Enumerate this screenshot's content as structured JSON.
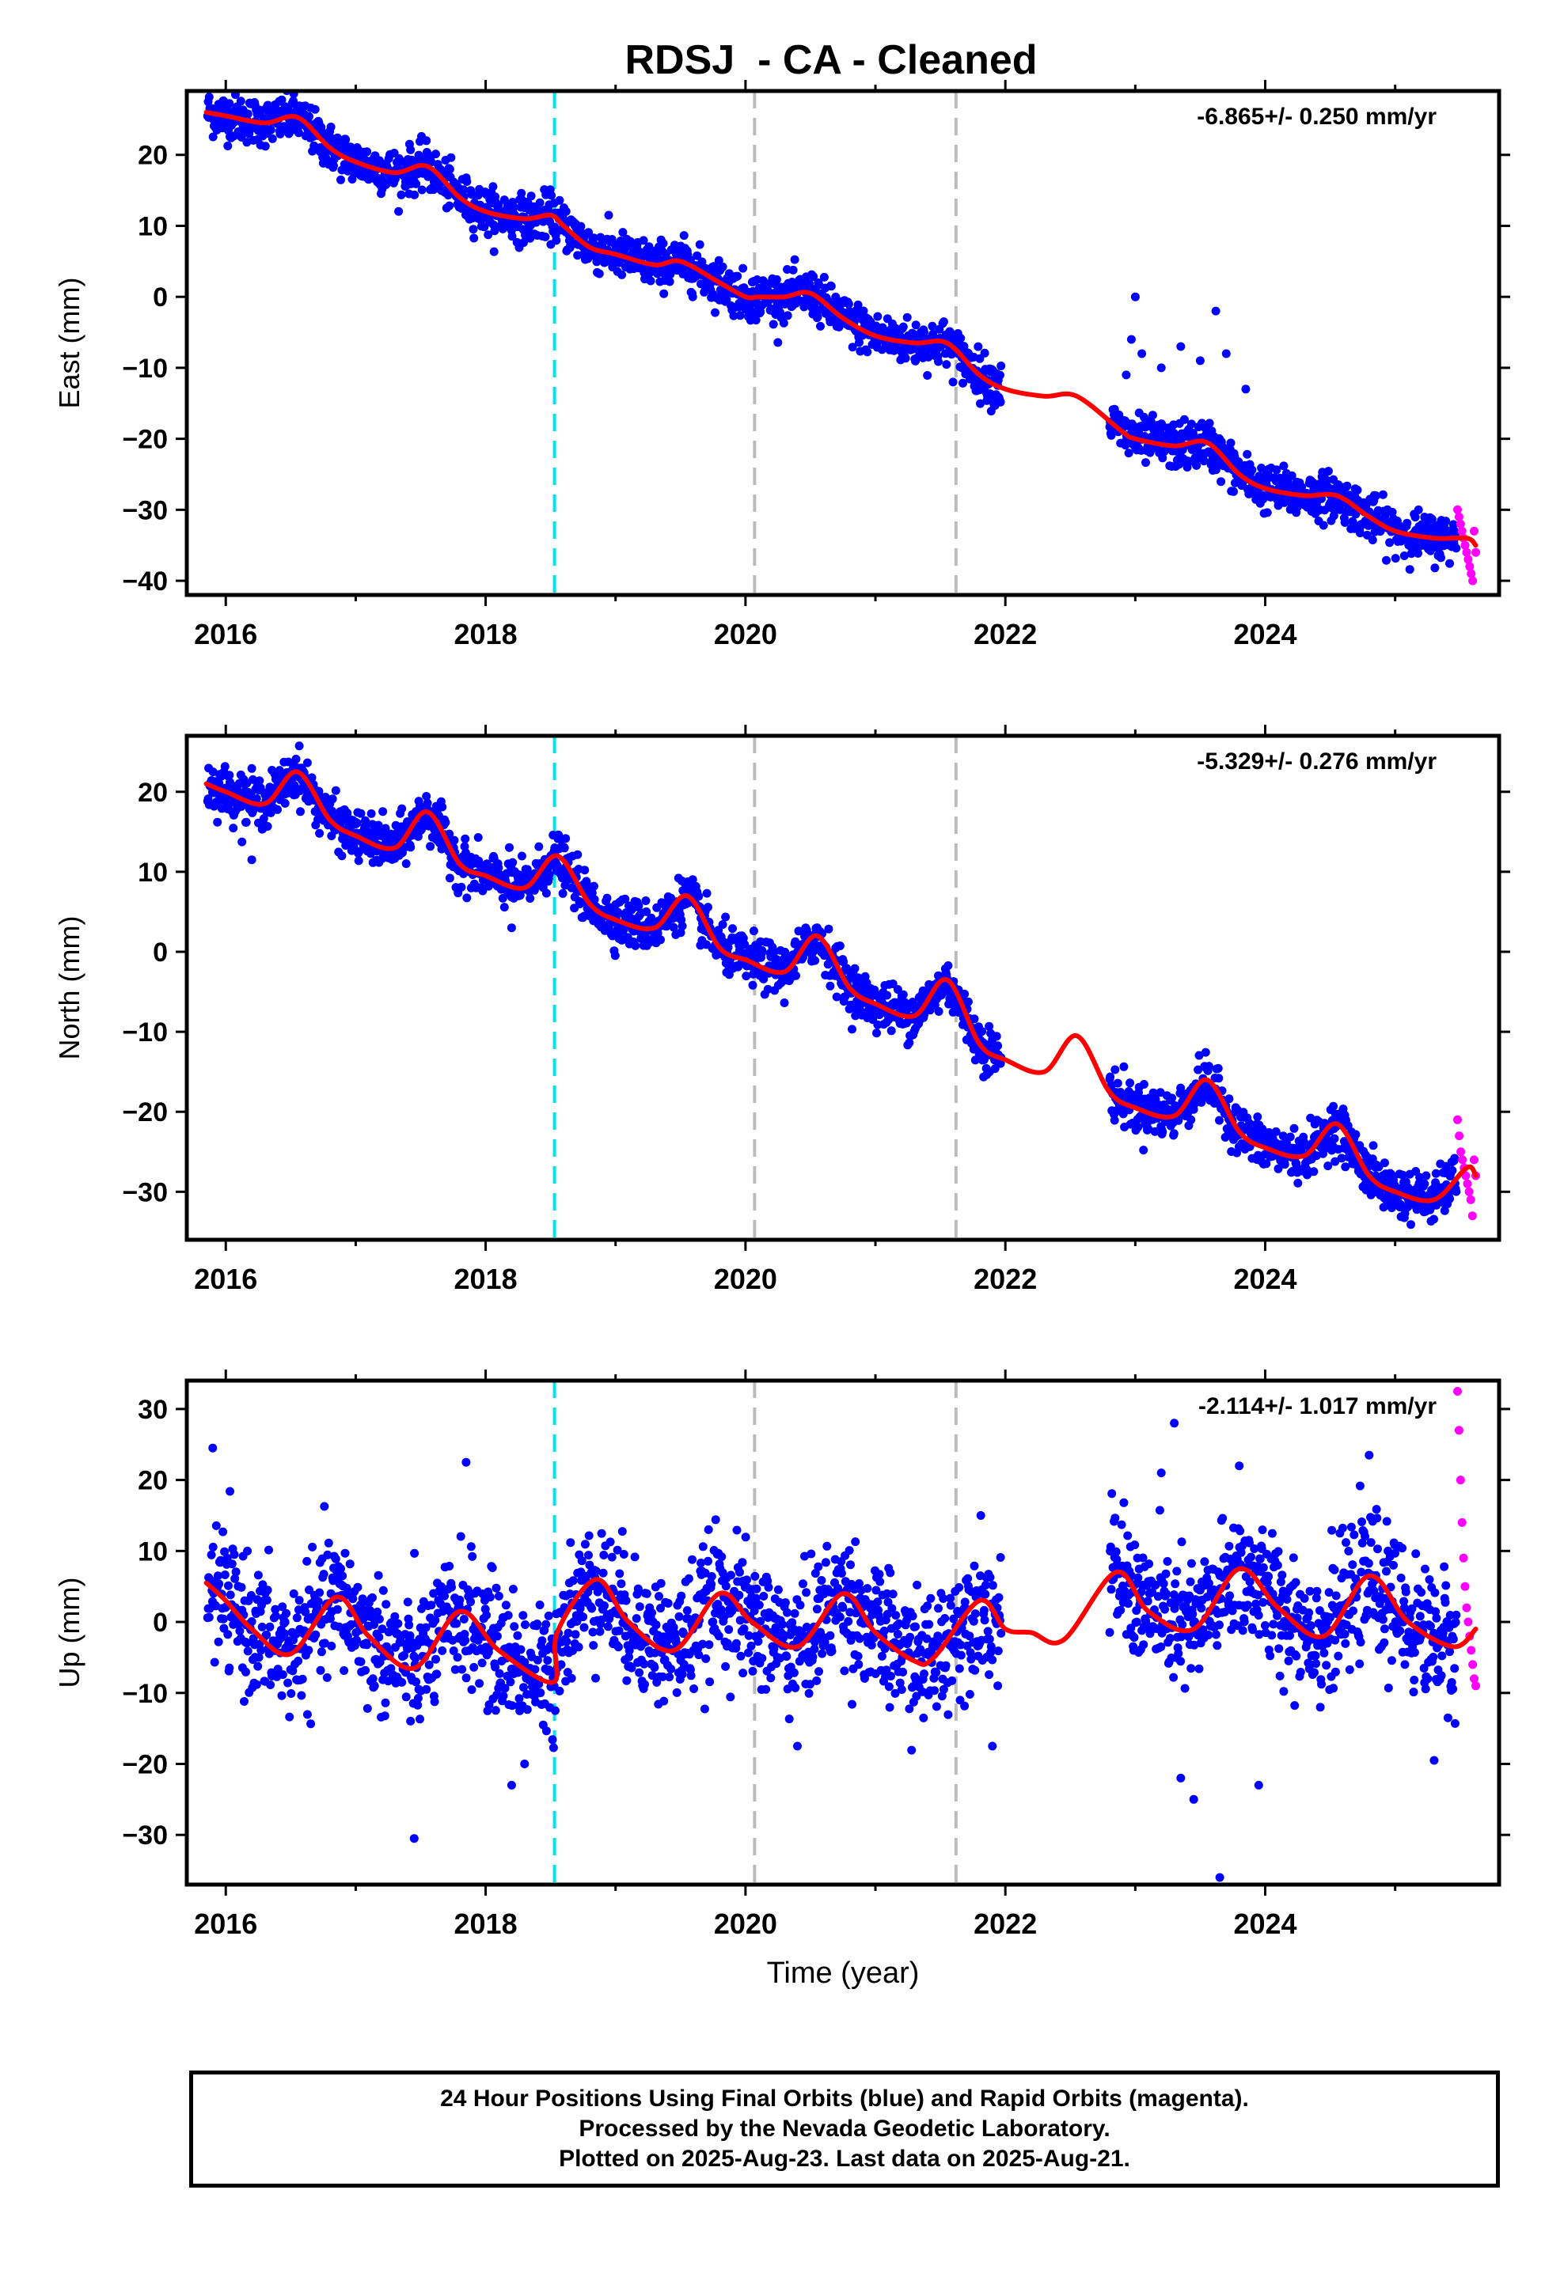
{
  "title": "RDSJ  - CA - Cleaned",
  "colors": {
    "final_points": "#0000ff",
    "rapid_points": "#ff00ff",
    "model": "#ff0000",
    "equipment_change": "#00e5ee",
    "other_event": "#bbbbbb"
  },
  "chart_data": [
    {
      "type": "scatter",
      "name": "East",
      "ylabel": "East (mm)",
      "xlabel": "",
      "xlim": [
        2015.7,
        2025.8
      ],
      "ylim": [
        -42,
        29
      ],
      "yticks": [
        -40,
        -30,
        -20,
        -10,
        0,
        10,
        20
      ],
      "ytick_labels": [
        "−40",
        "−30",
        "−20",
        "−10",
        "0",
        "10",
        "20"
      ],
      "xticks": [
        2016,
        2018,
        2020,
        2022,
        2024
      ],
      "xtick_labels": [
        "2016",
        "2018",
        "2020",
        "2022",
        "2024"
      ],
      "rate_label": "-6.865+/- 0.250 mm/yr",
      "rate": -6.865,
      "noise": 1.6,
      "model": {
        "x": [
          2015.85,
          2016.0,
          2016.3,
          2016.55,
          2016.8,
          2017.0,
          2017.3,
          2017.55,
          2017.8,
          2018.0,
          2018.3,
          2018.5,
          2018.6,
          2018.8,
          2019.0,
          2019.3,
          2019.5,
          2019.8,
          2020.0,
          2020.1,
          2020.3,
          2020.5,
          2020.75,
          2021.0,
          2021.3,
          2021.55,
          2021.8,
          2022.0,
          2022.3,
          2022.55,
          2022.9,
          2023.0,
          2023.3,
          2023.55,
          2023.8,
          2024.0,
          2024.3,
          2024.55,
          2024.8,
          2025.0,
          2025.3,
          2025.55,
          2025.62
        ],
        "y": [
          26,
          25.5,
          24.5,
          25.3,
          21,
          19,
          17.5,
          18.4,
          14,
          12,
          11,
          11.5,
          10,
          7,
          6,
          4.5,
          5,
          2,
          0,
          0,
          0,
          0.5,
          -3,
          -5.5,
          -6.5,
          -6.5,
          -11,
          -13,
          -14,
          -14,
          -19,
          -20,
          -21,
          -20.5,
          -25,
          -27,
          -28,
          -28,
          -31,
          -33,
          -34,
          -34,
          -35
        ]
      },
      "gaps": [
        [
          2021.97,
          2022.8
        ]
      ],
      "outliers": [
        [
          2022.93,
          -11
        ],
        [
          2022.97,
          -6
        ],
        [
          2023.0,
          0
        ],
        [
          2023.05,
          -8
        ],
        [
          2023.2,
          -10
        ],
        [
          2023.35,
          -7
        ],
        [
          2023.5,
          -9
        ],
        [
          2023.62,
          -2
        ],
        [
          2023.7,
          -8
        ],
        [
          2023.85,
          -13
        ],
        [
          2022.95,
          -22
        ],
        [
          2023.4,
          -24
        ]
      ],
      "rapid": {
        "x_start": 2025.48,
        "x_end": 2025.62,
        "y": [
          -30,
          -31,
          -32,
          -33,
          -34,
          -35,
          -36,
          -37,
          -38,
          -39,
          -40,
          -33,
          -36
        ]
      },
      "event_lines": [
        {
          "x": 2018.53,
          "kind": "equipment_change"
        },
        {
          "x": 2020.07,
          "kind": "other_event"
        },
        {
          "x": 2021.62,
          "kind": "other_event"
        }
      ]
    },
    {
      "type": "scatter",
      "name": "North",
      "ylabel": "North (mm)",
      "xlabel": "",
      "xlim": [
        2015.7,
        2025.8
      ],
      "ylim": [
        -36,
        27
      ],
      "yticks": [
        -30,
        -20,
        -10,
        0,
        10,
        20
      ],
      "ytick_labels": [
        "−30",
        "−20",
        "−10",
        "0",
        "10",
        "20"
      ],
      "xticks": [
        2016,
        2018,
        2020,
        2022,
        2024
      ],
      "xtick_labels": [
        "2016",
        "2018",
        "2020",
        "2022",
        "2024"
      ],
      "rate_label": "-5.329+/- 0.276 mm/yr",
      "rate": -5.329,
      "noise": 1.5,
      "model": {
        "x": [
          2015.85,
          2016.0,
          2016.3,
          2016.55,
          2016.8,
          2017.0,
          2017.3,
          2017.55,
          2017.8,
          2018.0,
          2018.3,
          2018.55,
          2018.8,
          2019.0,
          2019.3,
          2019.55,
          2019.8,
          2020.0,
          2020.3,
          2020.55,
          2020.8,
          2021.0,
          2021.3,
          2021.55,
          2021.8,
          2022.0,
          2022.3,
          2022.55,
          2022.8,
          2023.0,
          2023.3,
          2023.55,
          2023.8,
          2024.0,
          2024.3,
          2024.55,
          2024.8,
          2025.0,
          2025.3,
          2025.55,
          2025.62
        ],
        "y": [
          21,
          20,
          18.5,
          22.5,
          16.5,
          14.5,
          13,
          17.5,
          11,
          9.5,
          8,
          12,
          6,
          4,
          3,
          7,
          0.5,
          -1,
          -2.5,
          2,
          -4.5,
          -6.5,
          -8,
          -3.5,
          -11.5,
          -13.5,
          -15,
          -10.5,
          -17.5,
          -19.5,
          -20.5,
          -16,
          -22.5,
          -24.5,
          -25.5,
          -21.5,
          -28,
          -30,
          -31,
          -27,
          -28
        ]
      },
      "gaps": [
        [
          2021.97,
          2022.8
        ]
      ],
      "outliers": [
        [
          2016.2,
          11.5
        ],
        [
          2018.2,
          3
        ]
      ],
      "rapid": {
        "x_start": 2025.48,
        "x_end": 2025.62,
        "y": [
          -21,
          -23,
          -25,
          -26,
          -27,
          -28,
          -29,
          -30,
          -31,
          -33,
          -26,
          -28
        ]
      },
      "event_lines": [
        {
          "x": 2018.53,
          "kind": "equipment_change"
        },
        {
          "x": 2020.07,
          "kind": "other_event"
        },
        {
          "x": 2021.62,
          "kind": "other_event"
        }
      ]
    },
    {
      "type": "scatter",
      "name": "Up",
      "ylabel": "Up (mm)",
      "xlabel": "Time (year)",
      "xlim": [
        2015.7,
        2025.8
      ],
      "ylim": [
        -37,
        34
      ],
      "yticks": [
        -30,
        -20,
        -10,
        0,
        10,
        20,
        30
      ],
      "ytick_labels": [
        "−30",
        "−20",
        "−10",
        "0",
        "10",
        "20",
        "30"
      ],
      "xticks": [
        2016,
        2018,
        2020,
        2022,
        2024
      ],
      "xtick_labels": [
        "2016",
        "2018",
        "2020",
        "2022",
        "2024"
      ],
      "rate_label": "-2.114+/- 1.017 mm/yr",
      "rate": -2.114,
      "noise": 4.5,
      "model": {
        "x": [
          2015.85,
          2016.0,
          2016.2,
          2016.5,
          2016.85,
          2017.1,
          2017.45,
          2017.8,
          2018.1,
          2018.52,
          2018.55,
          2018.85,
          2019.1,
          2019.45,
          2019.8,
          2020.05,
          2020.4,
          2020.75,
          2021.0,
          2021.3,
          2021.45,
          2021.8,
          2022.0,
          2022.2,
          2022.45,
          2022.85,
          2023.1,
          2023.45,
          2023.8,
          2024.1,
          2024.45,
          2024.8,
          2025.1,
          2025.45,
          2025.62
        ],
        "y": [
          5.5,
          3,
          -1,
          -4.5,
          3.5,
          -2,
          -6.5,
          1.5,
          -4,
          -8.5,
          -1.5,
          6,
          0,
          -4,
          4,
          0,
          -3.5,
          4,
          -1.5,
          -5.5,
          -5,
          3,
          -1,
          -1.5,
          -2.5,
          7,
          1.5,
          -1,
          7.5,
          2,
          -2,
          6.5,
          0,
          -3.5,
          -1
        ]
      },
      "gaps": [
        [
          2021.97,
          2022.8
        ]
      ],
      "outliers": [
        [
          2015.9,
          24.5
        ],
        [
          2017.45,
          -30.5
        ],
        [
          2017.85,
          22.5
        ],
        [
          2018.2,
          -23
        ],
        [
          2018.3,
          -20
        ],
        [
          2023.3,
          28
        ],
        [
          2023.35,
          -22
        ],
        [
          2023.45,
          -25
        ],
        [
          2023.65,
          -36
        ],
        [
          2023.8,
          22
        ],
        [
          2023.95,
          -23
        ],
        [
          2024.8,
          23.5
        ],
        [
          2025.3,
          -19.5
        ],
        [
          2020.4,
          -17.5
        ],
        [
          2021.9,
          -17.5
        ],
        [
          2023.2,
          21
        ]
      ],
      "rapid": {
        "x_start": 2025.48,
        "x_end": 2025.62,
        "y": [
          32.5,
          27,
          20,
          14,
          9,
          5,
          2,
          0,
          -2,
          -4,
          -6,
          -8,
          -9
        ]
      },
      "event_lines": [
        {
          "x": 2018.53,
          "kind": "equipment_change"
        },
        {
          "x": 2020.07,
          "kind": "other_event"
        },
        {
          "x": 2021.62,
          "kind": "other_event"
        }
      ]
    }
  ],
  "footer": {
    "line1": "24 Hour Positions Using Final Orbits (blue) and Rapid Orbits (magenta).",
    "line2": "Processed by the Nevada Geodetic Laboratory.",
    "line3": "Plotted on 2025-Aug-23. Last data on 2025-Aug-21."
  }
}
